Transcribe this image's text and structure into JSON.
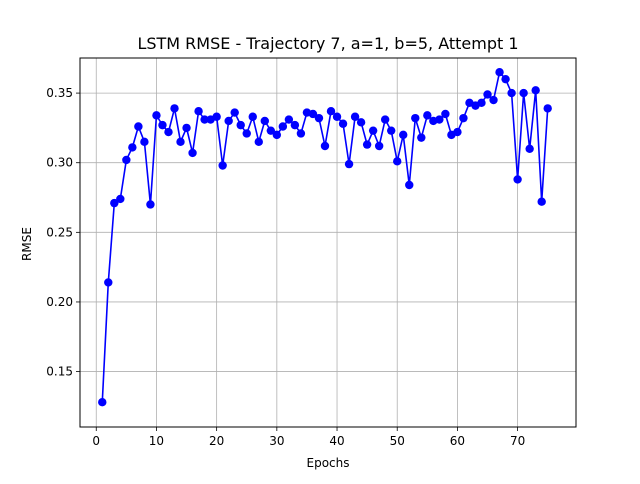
{
  "chart_data": {
    "type": "line",
    "title": "LSTM RMSE - Trajectory 7, a=1, b=5, Attempt 1",
    "xlabel": "Epochs",
    "ylabel": "RMSE",
    "xlim": [
      -2.7,
      79.7
    ],
    "ylim": [
      0.1102,
      0.3752
    ],
    "x_ticks": [
      0,
      10,
      20,
      30,
      40,
      50,
      60,
      70
    ],
    "x_tick_labels": [
      "0",
      "10",
      "20",
      "30",
      "40",
      "50",
      "60",
      "70"
    ],
    "y_ticks": [
      0.15,
      0.2,
      0.25,
      0.3,
      0.35
    ],
    "y_tick_labels": [
      "0.15",
      "0.20",
      "0.25",
      "0.30",
      "0.35"
    ],
    "grid": true,
    "legend": "none",
    "colors": {
      "series": "#0000ff",
      "grid": "#b0b0b0"
    },
    "series": [
      {
        "marker": "circle",
        "x": [
          1,
          2,
          3,
          4,
          5,
          6,
          7,
          8,
          9,
          10,
          11,
          12,
          13,
          14,
          15,
          16,
          17,
          18,
          19,
          20,
          21,
          22,
          23,
          24,
          25,
          26,
          27,
          28,
          29,
          30,
          31,
          32,
          33,
          34,
          35,
          36,
          37,
          38,
          39,
          40,
          41,
          42,
          43,
          44,
          45,
          46,
          47,
          48,
          49,
          50,
          51,
          52,
          53,
          54,
          55,
          56,
          57,
          58,
          59,
          60,
          61,
          62,
          63,
          64,
          65,
          66,
          67,
          68,
          69,
          70,
          71,
          72,
          73,
          74,
          75
        ],
        "values": [
          0.128,
          0.214,
          0.271,
          0.274,
          0.302,
          0.311,
          0.326,
          0.315,
          0.27,
          0.334,
          0.327,
          0.322,
          0.339,
          0.315,
          0.325,
          0.307,
          0.337,
          0.331,
          0.331,
          0.333,
          0.298,
          0.33,
          0.336,
          0.327,
          0.321,
          0.333,
          0.315,
          0.33,
          0.323,
          0.32,
          0.326,
          0.331,
          0.327,
          0.321,
          0.336,
          0.335,
          0.332,
          0.312,
          0.337,
          0.333,
          0.328,
          0.299,
          0.333,
          0.329,
          0.313,
          0.323,
          0.312,
          0.331,
          0.323,
          0.301,
          0.32,
          0.284,
          0.332,
          0.318,
          0.334,
          0.33,
          0.331,
          0.335,
          0.32,
          0.322,
          0.332,
          0.343,
          0.341,
          0.343,
          0.349,
          0.345,
          0.365,
          0.36,
          0.35,
          0.288,
          0.35,
          0.31,
          0.352,
          0.272,
          0.339
        ]
      }
    ]
  }
}
